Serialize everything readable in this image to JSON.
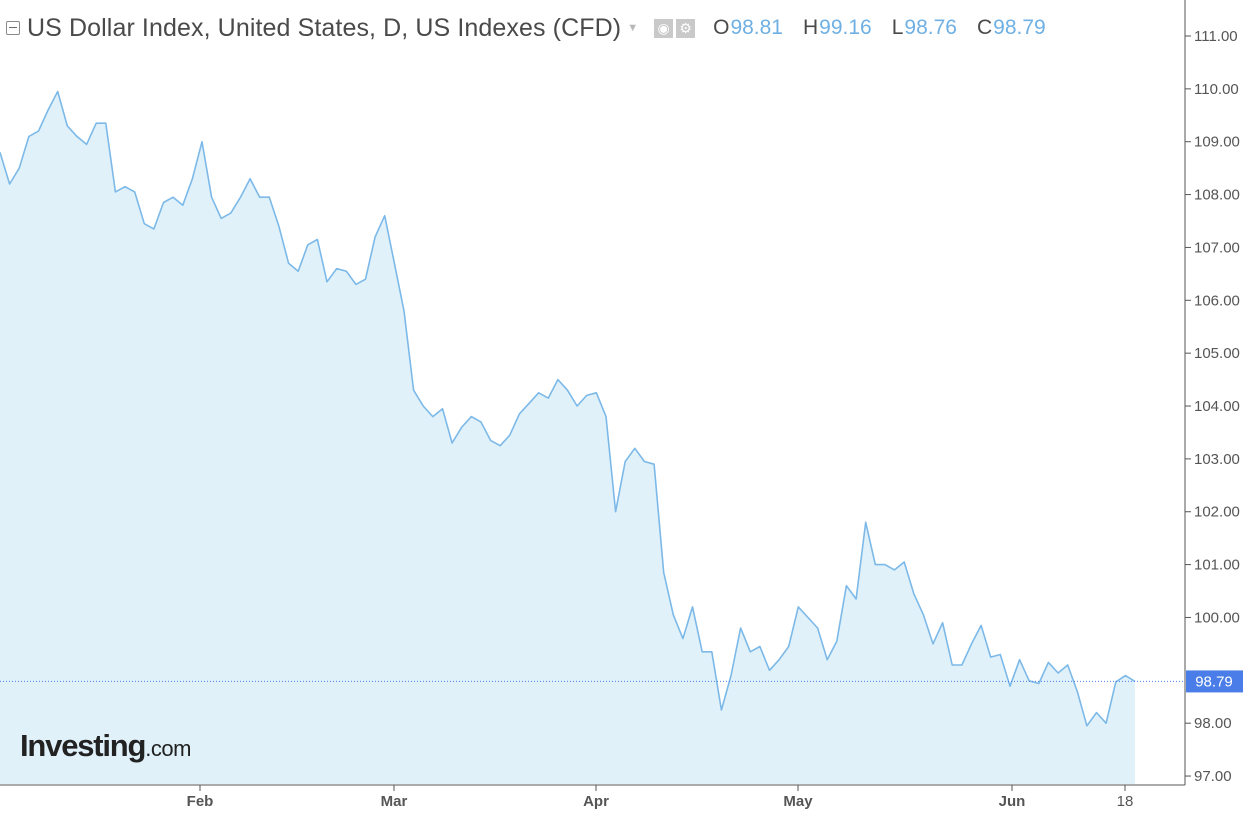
{
  "header": {
    "title": "US Dollar Index, United States, D, US Indexes (CFD)",
    "ohlc": [
      {
        "key": "O",
        "value": "98.81"
      },
      {
        "key": "H",
        "value": "99.16"
      },
      {
        "key": "L",
        "value": "98.76"
      },
      {
        "key": "C",
        "value": "98.79"
      }
    ],
    "icons": [
      "collapse-icon",
      "caret-down-icon",
      "eye-icon",
      "gear-icon"
    ]
  },
  "logo": {
    "bold": "Investing",
    "suffix": ".com"
  },
  "colors": {
    "line": "#7cb9e8",
    "fill": "#e0f1fa",
    "accent": "#4a7de8",
    "axis": "#555555"
  },
  "chart_data": {
    "type": "area",
    "title": "US Dollar Index, United States, D, US Indexes (CFD)",
    "ylim": [
      96.8,
      111.2
    ],
    "y_ticks": [
      "111.00",
      "110.00",
      "109.00",
      "108.00",
      "107.00",
      "106.00",
      "105.00",
      "104.00",
      "103.00",
      "102.00",
      "101.00",
      "100.00",
      "98.00",
      "97.00"
    ],
    "x_tick_labels": [
      "Feb",
      "Mar",
      "Apr",
      "May",
      "Jun",
      "18"
    ],
    "last_price": "98.79",
    "grid": false,
    "series": [
      {
        "values": [
          108.8,
          108.2,
          108.5,
          109.1,
          109.2,
          109.6,
          109.95,
          109.3,
          109.1,
          108.95,
          109.35,
          109.35,
          108.05,
          108.15,
          108.05,
          107.45,
          107.35,
          107.85,
          107.95,
          107.8,
          108.3,
          109.0,
          107.95,
          107.55,
          107.65,
          107.95,
          108.3,
          107.95,
          107.95,
          107.4,
          106.7,
          106.55,
          107.05,
          107.15,
          106.35,
          106.6,
          106.55,
          106.3,
          106.4,
          107.2,
          107.6,
          106.7,
          105.8,
          104.3,
          104.0,
          103.8,
          103.95,
          103.3,
          103.6,
          103.8,
          103.7,
          103.35,
          103.25,
          103.45,
          103.85,
          104.05,
          104.25,
          104.15,
          104.5,
          104.3,
          104.0,
          104.2,
          104.25,
          103.8,
          102.0,
          102.95,
          103.2,
          102.95,
          102.9,
          100.85,
          100.05,
          99.6,
          100.2,
          99.35,
          99.35,
          98.25,
          98.9,
          99.8,
          99.35,
          99.45,
          99.0,
          99.2,
          99.45,
          100.2,
          100.0,
          99.8,
          99.2,
          99.55,
          100.6,
          100.35,
          101.8,
          101.0,
          101.0,
          100.9,
          101.05,
          100.45,
          100.05,
          99.5,
          99.9,
          99.1,
          99.1,
          99.5,
          99.85,
          99.25,
          99.3,
          98.7,
          99.2,
          98.8,
          98.75,
          99.15,
          98.95,
          99.1,
          98.6,
          97.95,
          98.2,
          98.0,
          98.78,
          98.9,
          98.79
        ]
      }
    ]
  }
}
